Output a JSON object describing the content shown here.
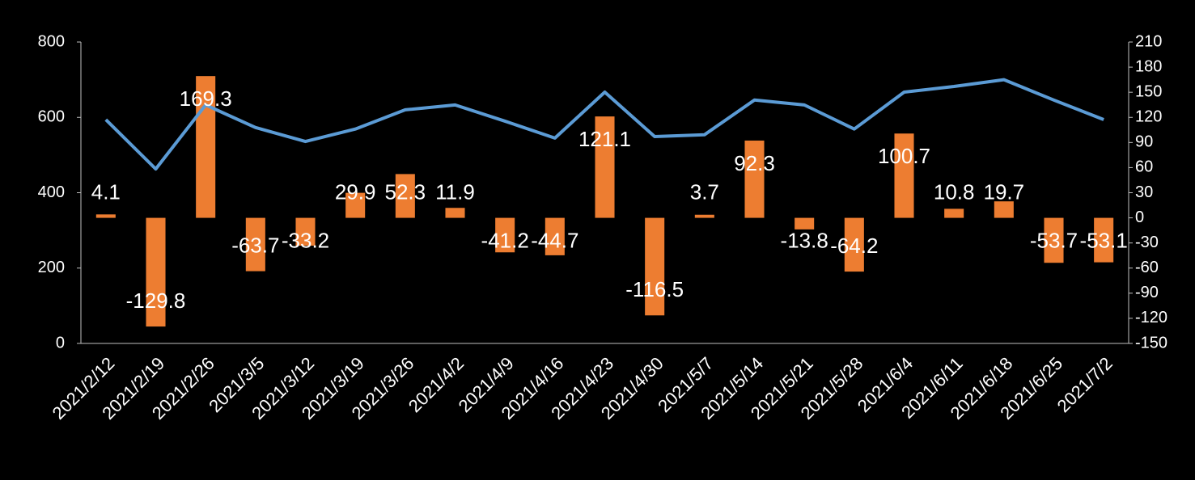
{
  "chart_data": {
    "type": "bar-line",
    "categories": [
      "2021/2/12",
      "2021/2/19",
      "2021/2/26",
      "2021/3/5",
      "2021/3/12",
      "2021/3/19",
      "2021/3/26",
      "2021/4/2",
      "2021/4/9",
      "2021/4/16",
      "2021/4/23",
      "2021/4/30",
      "2021/5/7",
      "2021/5/14",
      "2021/5/21",
      "2021/5/28",
      "2021/6/4",
      "2021/6/11",
      "2021/6/18",
      "2021/6/25",
      "2021/7/2"
    ],
    "series": [
      {
        "type": "bar",
        "axis": "y2",
        "color": "#ed7d31",
        "values": [
          4.1,
          -129.8,
          169.3,
          -63.7,
          -33.2,
          29.9,
          52.3,
          11.9,
          -41.2,
          -44.7,
          121.1,
          -116.5,
          3.7,
          92.3,
          -13.8,
          -64.2,
          100.7,
          10.8,
          19.7,
          -53.7,
          -53.1
        ]
      },
      {
        "type": "line",
        "axis": "y",
        "color": "#5b9bd5",
        "values": [
          594,
          463,
          633,
          573,
          536,
          569,
          620,
          633,
          590,
          545,
          667,
          549,
          554,
          646,
          633,
          569,
          667,
          682,
          700,
          646,
          594
        ]
      }
    ],
    "ylim": [
      0,
      800
    ],
    "yticks": [
      0,
      200,
      400,
      600,
      800
    ],
    "y2lim": [
      -150,
      210
    ],
    "y2ticks": [
      -150,
      -120,
      -90,
      -60,
      -30,
      0,
      30,
      60,
      90,
      120,
      150,
      180,
      210
    ],
    "grid": false
  }
}
